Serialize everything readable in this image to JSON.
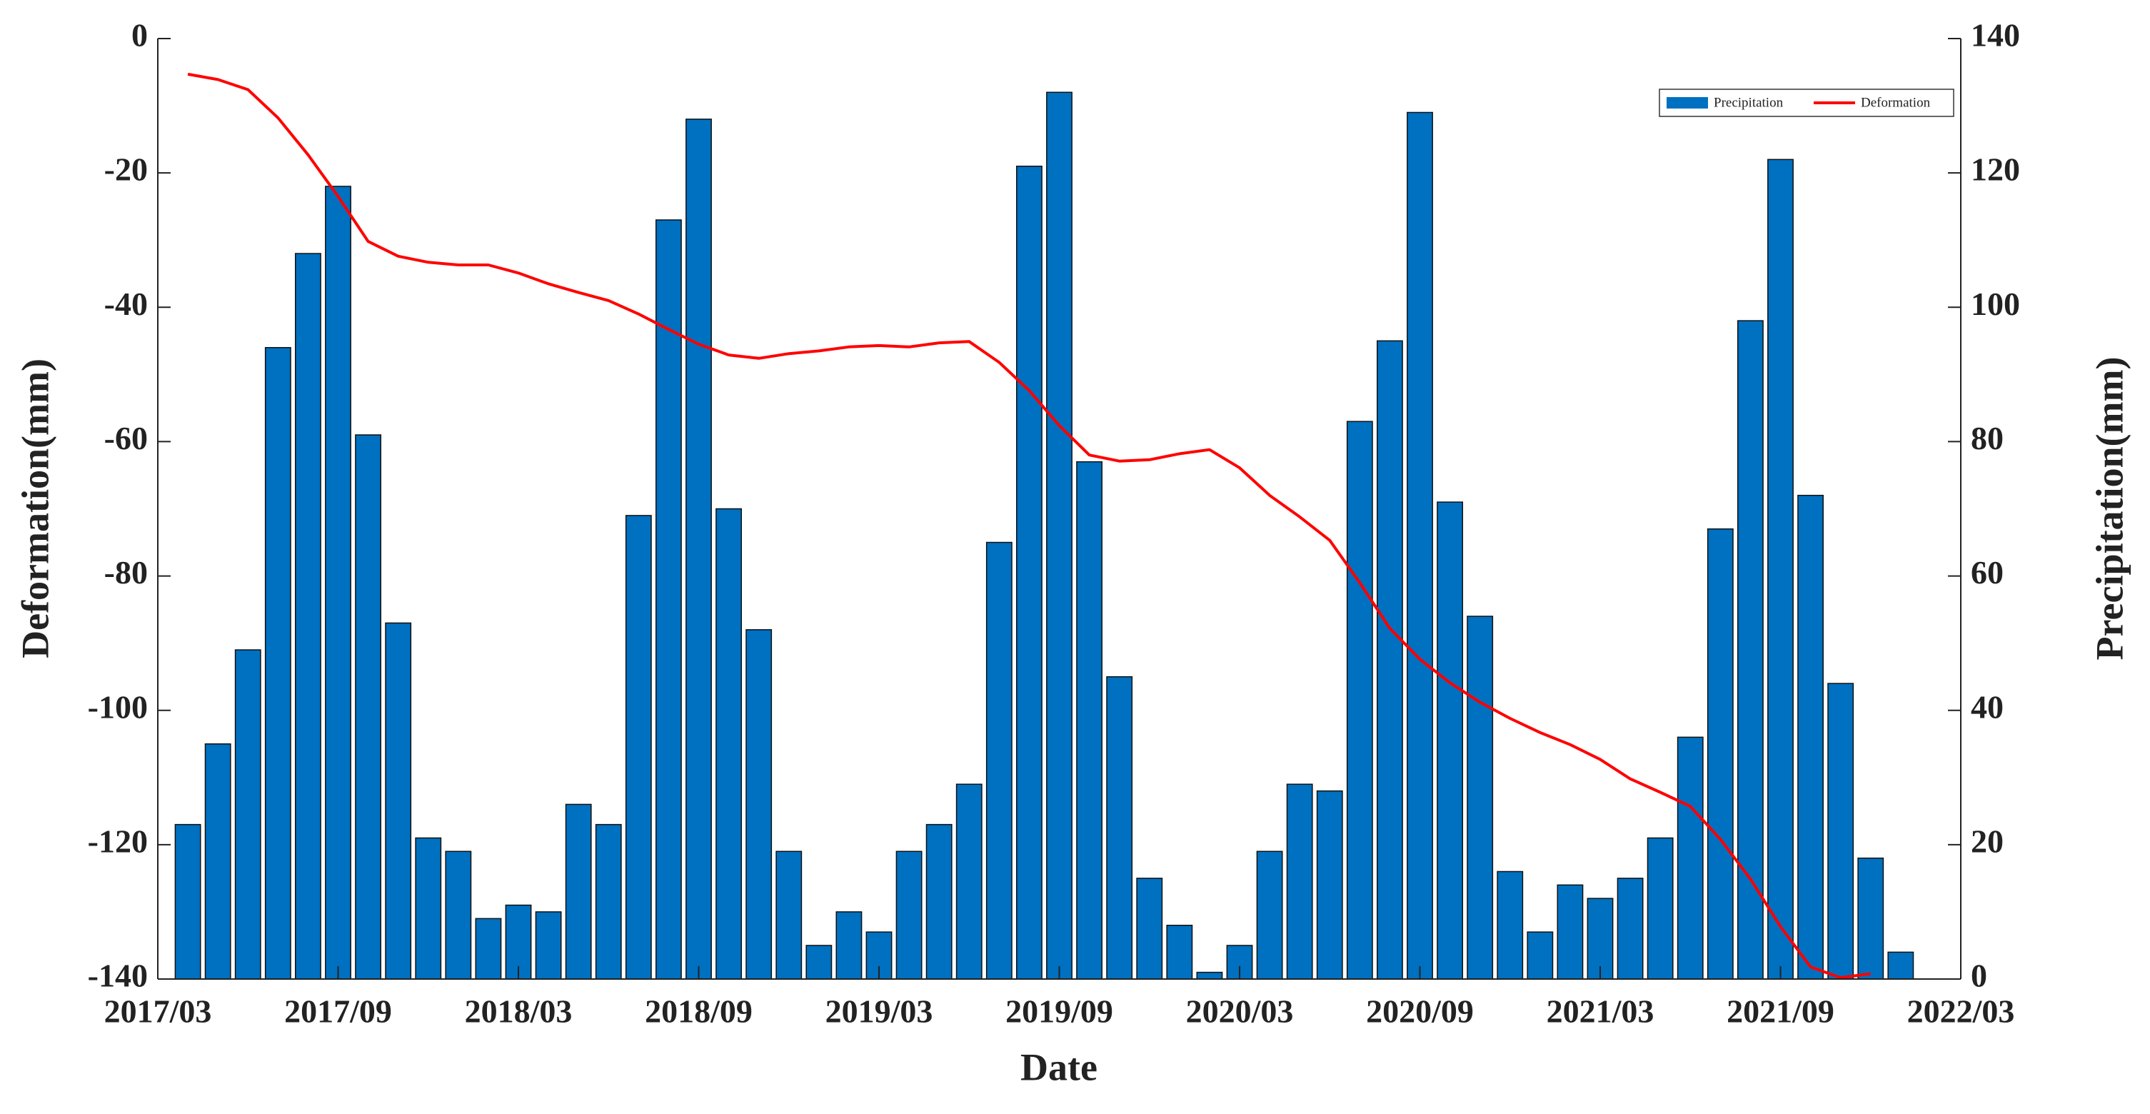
{
  "chart_data": {
    "type": "bar",
    "xlabel": "Date",
    "ylabel": "Deformation(mm)",
    "y2label": "Precipitation(mm)",
    "xlim": [
      "2017/03",
      "2022/03"
    ],
    "xticks": [
      "2017/03",
      "2017/09",
      "2018/03",
      "2018/09",
      "2019/03",
      "2019/09",
      "2020/03",
      "2020/09",
      "2021/03",
      "2021/09",
      "2022/03"
    ],
    "ylim": [
      -140,
      0
    ],
    "yticks": [
      0,
      -20,
      -40,
      -60,
      -80,
      -100,
      -120,
      -140
    ],
    "y2lim": [
      0,
      140
    ],
    "y2ticks": [
      0,
      20,
      40,
      60,
      80,
      100,
      120,
      140
    ],
    "legend": "upper right",
    "series": [
      {
        "name": "Precipitation",
        "type": "bar",
        "axis": "y2",
        "color": "#0070c0",
        "x": [
          "2017/04",
          "2017/05",
          "2017/06",
          "2017/07",
          "2017/08",
          "2017/09",
          "2017/10",
          "2017/11",
          "2017/12",
          "2018/01",
          "2018/02",
          "2018/03",
          "2018/04",
          "2018/05",
          "2018/06",
          "2018/07",
          "2018/08",
          "2018/09",
          "2018/10",
          "2018/11",
          "2018/12",
          "2019/01",
          "2019/02",
          "2019/03",
          "2019/04",
          "2019/05",
          "2019/06",
          "2019/07",
          "2019/08",
          "2019/09",
          "2019/10",
          "2019/11",
          "2019/12",
          "2020/01",
          "2020/02",
          "2020/03",
          "2020/04",
          "2020/05",
          "2020/06",
          "2020/07",
          "2020/08",
          "2020/09",
          "2020/10",
          "2020/11",
          "2020/12",
          "2021/01",
          "2021/02",
          "2021/03",
          "2021/04",
          "2021/05",
          "2021/06",
          "2021/07",
          "2021/08",
          "2021/09",
          "2021/10",
          "2021/11",
          "2021/12",
          "2022/01"
        ],
        "values": [
          23,
          35,
          49,
          94,
          108,
          118,
          81,
          53,
          21,
          19,
          9,
          11,
          10,
          26,
          23,
          69,
          113,
          128,
          70,
          52,
          19,
          5,
          10,
          7,
          19,
          23,
          29,
          65,
          121,
          132,
          77,
          45,
          15,
          8,
          1,
          5,
          19,
          29,
          28,
          83,
          95,
          129,
          71,
          54,
          16,
          7,
          14,
          12,
          15,
          21,
          36,
          67,
          98,
          122,
          72,
          44,
          18,
          4
        ]
      },
      {
        "name": "Deformation",
        "type": "line",
        "axis": "y",
        "color": "#ff0000",
        "x": [
          "2017/04",
          "2017/05",
          "2017/06",
          "2017/07",
          "2017/08",
          "2017/09",
          "2017/10",
          "2017/11",
          "2017/12",
          "2018/01",
          "2018/02",
          "2018/03",
          "2018/04",
          "2018/05",
          "2018/06",
          "2018/07",
          "2018/08",
          "2018/09",
          "2018/10",
          "2018/11",
          "2018/12",
          "2019/01",
          "2019/02",
          "2019/03",
          "2019/04",
          "2019/05",
          "2019/06",
          "2019/07",
          "2019/08",
          "2019/09",
          "2019/10",
          "2019/11",
          "2019/12",
          "2020/01",
          "2020/02",
          "2020/03",
          "2020/04",
          "2020/05",
          "2020/06",
          "2020/07",
          "2020/08",
          "2020/09",
          "2020/10",
          "2020/11",
          "2020/12",
          "2021/01",
          "2021/02",
          "2021/03",
          "2021/04",
          "2021/05",
          "2021/06",
          "2021/07",
          "2021/08",
          "2021/09",
          "2021/10",
          "2021/11",
          "2021/12"
        ],
        "values": [
          -5.3,
          -6.1,
          -7.6,
          -11.8,
          -17.3,
          -23.5,
          -30.2,
          -32.4,
          -33.3,
          -33.7,
          -33.7,
          -34.9,
          -36.5,
          -37.8,
          -39,
          -41,
          -43.3,
          -45.5,
          -47.1,
          -47.6,
          -46.9,
          -46.5,
          -45.9,
          -45.7,
          -45.9,
          -45.3,
          -45.1,
          -48.2,
          -52.4,
          -57.6,
          -62,
          -62.9,
          -62.7,
          -61.8,
          -61.2,
          -63.9,
          -68,
          -71.2,
          -74.7,
          -81,
          -87.8,
          -92.4,
          -95.9,
          -98.8,
          -101.2,
          -103.3,
          -105.1,
          -107.3,
          -110.2,
          -112.2,
          -114.3,
          -119.2,
          -125.1,
          -132.2,
          -138.2,
          -139.8,
          -139.2
        ]
      }
    ]
  }
}
